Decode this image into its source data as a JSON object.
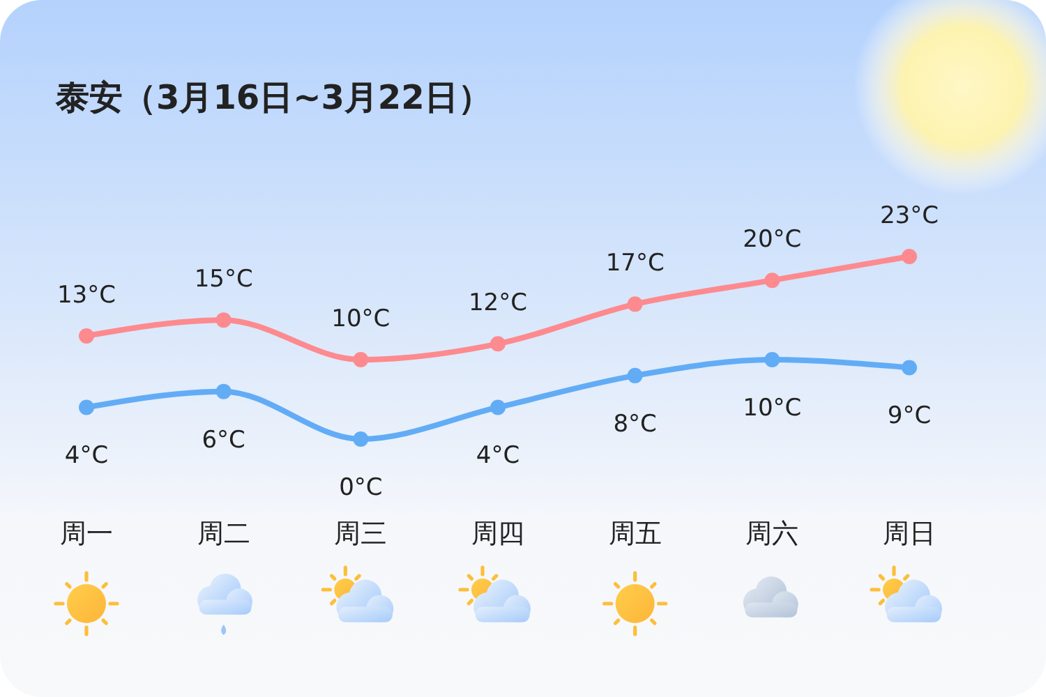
{
  "chart_data": {
    "type": "line",
    "title": "泰安（3月16日~3月22日）",
    "categories": [
      "周一",
      "周二",
      "周三",
      "周四",
      "周五",
      "周六",
      "周日"
    ],
    "series": [
      {
        "color": "#fd8a8e",
        "values": [
          13,
          15,
          10,
          12,
          17,
          20,
          23
        ],
        "value_labels": [
          "13°C",
          "15°C",
          "10°C",
          "12°C",
          "17°C",
          "20°C",
          "23°C"
        ]
      },
      {
        "color": "#62acf6",
        "values": [
          4,
          6,
          0,
          4,
          8,
          10,
          9
        ],
        "value_labels": [
          "4°C",
          "6°C",
          "0°C",
          "4°C",
          "8°C",
          "10°C",
          "9°C"
        ]
      }
    ],
    "marker": "circle"
  }
}
